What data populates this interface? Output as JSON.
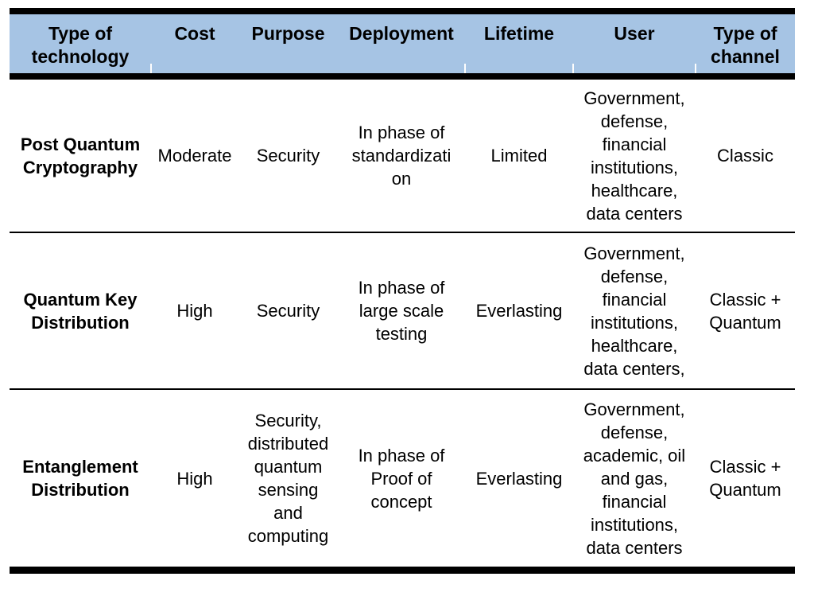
{
  "table": {
    "header_bg": "#A6C4E4",
    "border_color": "#000000",
    "columns": [
      {
        "label": "Type of\ntechnology"
      },
      {
        "label": "Cost"
      },
      {
        "label": "Purpose"
      },
      {
        "label": "Deployment"
      },
      {
        "label": "Lifetime"
      },
      {
        "label": "User"
      },
      {
        "label": "Type of\nchannel"
      }
    ],
    "rows": [
      {
        "technology": "Post Quantum\nCryptography",
        "cost": "Moderate",
        "purpose": "Security",
        "deployment": "In phase of\nstandardizati\non",
        "lifetime": "Limited",
        "user": "Government,\ndefense,\nfinancial\ninstitutions,\nhealthcare,\ndata centers",
        "channel": "Classic"
      },
      {
        "technology": "Quantum Key\nDistribution",
        "cost": "High",
        "purpose": "Security",
        "deployment": "In phase of\nlarge scale\ntesting",
        "lifetime": "Everlasting",
        "user": "Government,\ndefense,\nfinancial\ninstitutions,\nhealthcare,\ndata centers,",
        "channel": "Classic +\nQuantum"
      },
      {
        "technology": "Entanglement\nDistribution",
        "cost": "High",
        "purpose": "Security,\ndistributed\nquantum\nsensing\nand\ncomputing",
        "deployment": "In phase of\nProof of\nconcept",
        "lifetime": "Everlasting",
        "user": "Government,\ndefense,\nacademic, oil\nand gas,\nfinancial\ninstitutions,\ndata centers",
        "channel": "Classic +\nQuantum"
      }
    ]
  }
}
